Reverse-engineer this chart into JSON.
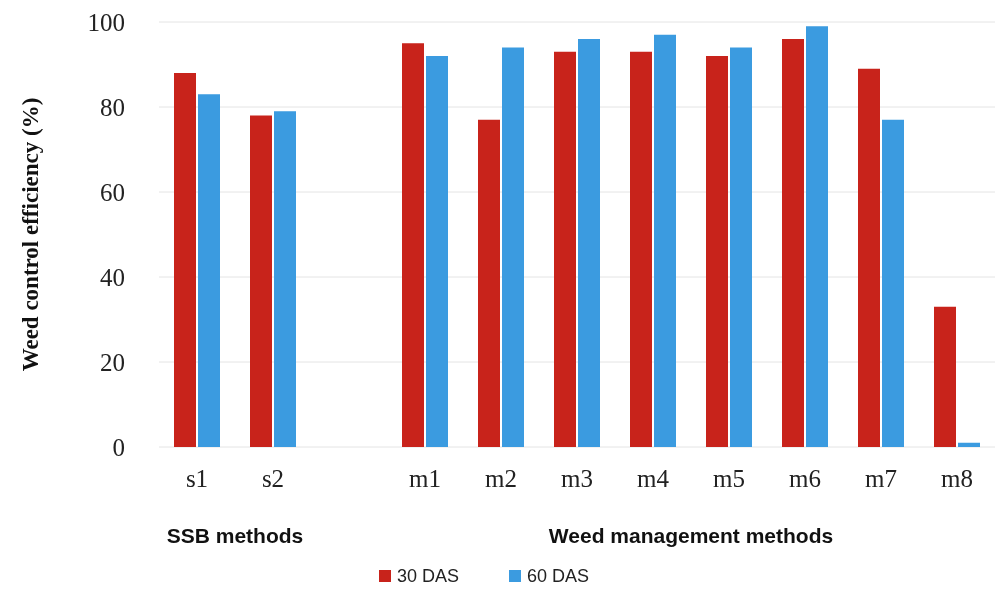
{
  "chart_data": {
    "type": "bar",
    "ylabel": "Weed control efficiency (%)",
    "categories": [
      "s1",
      "s2",
      null,
      "m1",
      "m2",
      "m3",
      "m4",
      "m5",
      "m6",
      "m7",
      "m8"
    ],
    "series": [
      {
        "name": "30 DAS",
        "color": "#c8231b",
        "values": [
          88,
          78,
          null,
          95,
          77,
          93,
          93,
          92,
          96,
          89,
          33
        ]
      },
      {
        "name": "60 DAS",
        "color": "#3b9be0",
        "values": [
          83,
          79,
          null,
          92,
          94,
          96,
          97,
          94,
          99,
          77,
          1
        ]
      }
    ],
    "ylim": [
      0,
      100
    ],
    "yticks": [
      0,
      20,
      40,
      60,
      80,
      100
    ],
    "grid": "y",
    "legend": "bottom",
    "annotations": [
      "SSB methods",
      "Weed management methods"
    ]
  }
}
